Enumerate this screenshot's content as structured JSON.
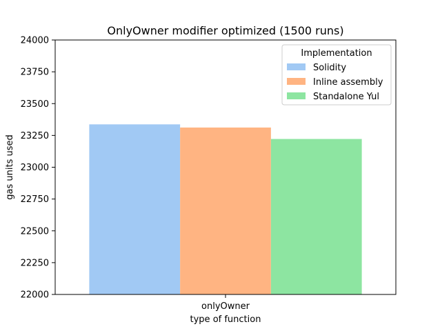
{
  "chart_data": {
    "type": "bar",
    "title": "OnlyOwner modifier optimized (1500 runs)",
    "xlabel": "type of function",
    "ylabel": "gas units used",
    "categories": [
      "onlyOwner"
    ],
    "ylim": [
      22000,
      24000
    ],
    "yticks": [
      22000,
      22250,
      22500,
      22750,
      23000,
      23250,
      23500,
      23750,
      24000
    ],
    "grid": false,
    "legend": {
      "title": "Implementation",
      "placement": "top-right"
    },
    "series": [
      {
        "name": "Solidity",
        "color": "#a1c9f4",
        "values": [
          23337
        ]
      },
      {
        "name": "Inline assembly",
        "color": "#ffb482",
        "values": [
          23312
        ]
      },
      {
        "name": "Standalone Yul",
        "color": "#8de5a1",
        "values": [
          23222
        ]
      }
    ]
  }
}
